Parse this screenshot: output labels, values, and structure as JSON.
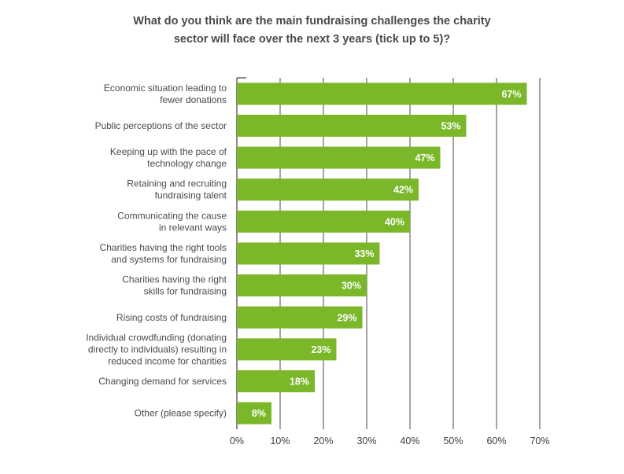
{
  "chart_data": {
    "type": "bar",
    "orientation": "horizontal",
    "title": [
      "What do you think are the main fundraising challenges the charity",
      "sector will face over the next 3 years (tick up to 5)?"
    ],
    "categories": [
      [
        "Economic situation leading to",
        "fewer donations"
      ],
      [
        "Public perceptions of the sector"
      ],
      [
        "Keeping up with the pace of",
        "technology change"
      ],
      [
        "Retaining and recruiting",
        "fundraising talent"
      ],
      [
        "Communicating the cause",
        "in relevant ways"
      ],
      [
        "Charities having the right tools",
        "and systems for fundraising"
      ],
      [
        "Charities having the right",
        "skills for fundraising"
      ],
      [
        "Rising costs of fundraising"
      ],
      [
        "Individual crowdfunding (donating",
        "directly to individuals) resulting in",
        "reduced income for charities"
      ],
      [
        "Changing demand for services"
      ],
      [
        "Other (please specify)"
      ]
    ],
    "values": [
      67,
      53,
      47,
      42,
      40,
      33,
      30,
      29,
      23,
      18,
      8
    ],
    "data_labels": [
      "67%",
      "53%",
      "47%",
      "42%",
      "40%",
      "33%",
      "30%",
      "29%",
      "23%",
      "18%",
      "8%"
    ],
    "xlim": [
      0,
      70
    ],
    "ticks": [
      "0%",
      "10%",
      "20%",
      "30%",
      "40%",
      "50%",
      "60%",
      "70%"
    ],
    "grid": true,
    "legend": "none",
    "bar_color": "#7ab829",
    "grid_color": "#4a4a4a"
  }
}
